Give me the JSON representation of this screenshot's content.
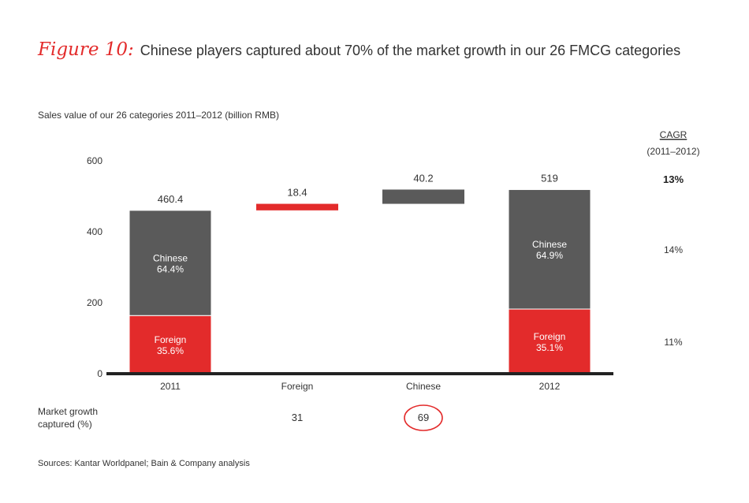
{
  "figure_label": "Figure 10:",
  "title": "Chinese players captured about 70% of the market growth in our 26 FMCG categories",
  "subtitle": "Sales value of our 26 categories 2011–2012 (billion RMB)",
  "sources": "Sources: Kantar Worldpanel; Bain & Company analysis",
  "colors": {
    "chinese": "#5a5a5a",
    "foreign": "#e32b2b",
    "accent_red": "#e32b2b",
    "axis": "#222222"
  },
  "chart_data": {
    "type": "bar",
    "subtype": "waterfall",
    "ylim": [
      0,
      600
    ],
    "yticks": [
      "0",
      "200",
      "400",
      "600"
    ],
    "categories": [
      "2011",
      "Foreign",
      "Chinese",
      "2012"
    ],
    "bars": [
      {
        "category": "2011",
        "kind": "total",
        "total": 460.4,
        "total_label": "460.4",
        "segments": [
          {
            "series": "Foreign",
            "value": 163.9,
            "label_line1": "Foreign",
            "label_line2": "35.6%"
          },
          {
            "series": "Chinese",
            "value": 296.5,
            "label_line1": "Chinese",
            "label_line2": "64.4%"
          }
        ]
      },
      {
        "category": "Foreign",
        "kind": "increment",
        "series": "Foreign",
        "base": 460.4,
        "value": 18.4,
        "value_label": "18.4"
      },
      {
        "category": "Chinese",
        "kind": "increment",
        "series": "Chinese",
        "base": 478.8,
        "value": 40.2,
        "value_label": "40.2"
      },
      {
        "category": "2012",
        "kind": "total",
        "total": 519,
        "total_label": "519",
        "segments": [
          {
            "series": "Foreign",
            "value": 182.2,
            "label_line1": "Foreign",
            "label_line2": "35.1%"
          },
          {
            "series": "Chinese",
            "value": 336.8,
            "label_line1": "Chinese",
            "label_line2": "64.9%"
          }
        ]
      }
    ],
    "cagr": {
      "header_line1": "CAGR",
      "header_line2": "(2011–2012)",
      "total": "13%",
      "chinese": "14%",
      "foreign": "11%"
    },
    "market_growth": {
      "label_line1": "Market growth",
      "label_line2": "captured (%)",
      "values": [
        {
          "category": "Foreign",
          "value": "31",
          "circled": false
        },
        {
          "category": "Chinese",
          "value": "69",
          "circled": true
        }
      ]
    }
  }
}
